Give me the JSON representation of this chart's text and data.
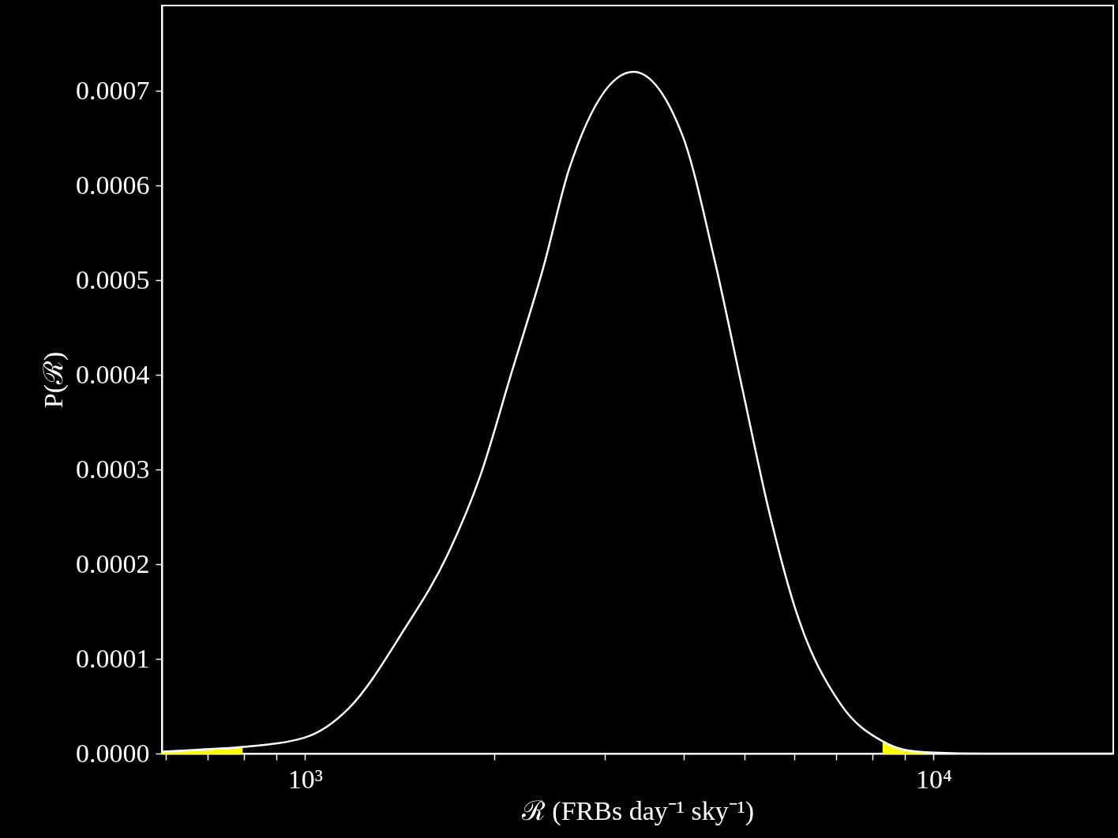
{
  "chart_data": {
    "type": "line",
    "xlabel": "ℛ (FRBs day⁻¹ sky⁻¹)",
    "ylabel": "P(ℛ)",
    "log": "x",
    "grid": false,
    "xlim": [
      592,
      19320
    ],
    "ylim": [
      0,
      0.00079
    ],
    "xticks": [
      {
        "value": 600,
        "label": null
      },
      {
        "value": 700,
        "label": null
      },
      {
        "value": 800,
        "label": null
      },
      {
        "value": 900,
        "label": null
      },
      {
        "value": 1000,
        "label": "10³"
      },
      {
        "value": 2000,
        "label": null
      },
      {
        "value": 3000,
        "label": null
      },
      {
        "value": 4000,
        "label": null
      },
      {
        "value": 5000,
        "label": null
      },
      {
        "value": 6000,
        "label": null
      },
      {
        "value": 7000,
        "label": null
      },
      {
        "value": 8000,
        "label": null
      },
      {
        "value": 9000,
        "label": null
      },
      {
        "value": 10000,
        "label": "10⁴"
      }
    ],
    "yticks": [
      {
        "value": 0,
        "label": "0.0000"
      },
      {
        "value": 0.0001,
        "label": "0.0001"
      },
      {
        "value": 0.0002,
        "label": "0.0002"
      },
      {
        "value": 0.0003,
        "label": "0.0003"
      },
      {
        "value": 0.0004,
        "label": "0.0004"
      },
      {
        "value": 0.0005,
        "label": "0.0005"
      },
      {
        "value": 0.0006,
        "label": "0.0006"
      },
      {
        "value": 0.0007,
        "label": "0.0007"
      }
    ],
    "series": [
      {
        "type": "area",
        "color": "#ffff00",
        "x": [
          592,
          674,
          796
        ],
        "values": [
          2e-06,
          4e-06,
          7e-06
        ]
      },
      {
        "type": "area",
        "color": "#ffff00",
        "x": [
          8298,
          8995,
          10000
        ],
        "values": [
          1.3e-05,
          4e-06,
          1e-06
        ]
      },
      {
        "color": "#ffffff",
        "x": [
          592,
          674,
          796,
          1000,
          1175,
          1432,
          1689,
          1900,
          2133,
          2394,
          2637,
          3331,
          3991,
          4478,
          4955,
          5465,
          6026,
          7120,
          8298,
          8995,
          10000,
          11990,
          19320
        ],
        "values": [
          2e-06,
          4e-06,
          7e-06,
          1.7e-05,
          4.8e-05,
          0.000129,
          0.000211,
          0.000293,
          0.000403,
          0.000513,
          0.000619,
          0.00072,
          0.000652,
          0.000523,
          0.000388,
          0.000258,
          0.000153,
          5.2e-05,
          1.3e-05,
          4e-06,
          1e-06,
          0,
          0
        ]
      }
    ]
  }
}
